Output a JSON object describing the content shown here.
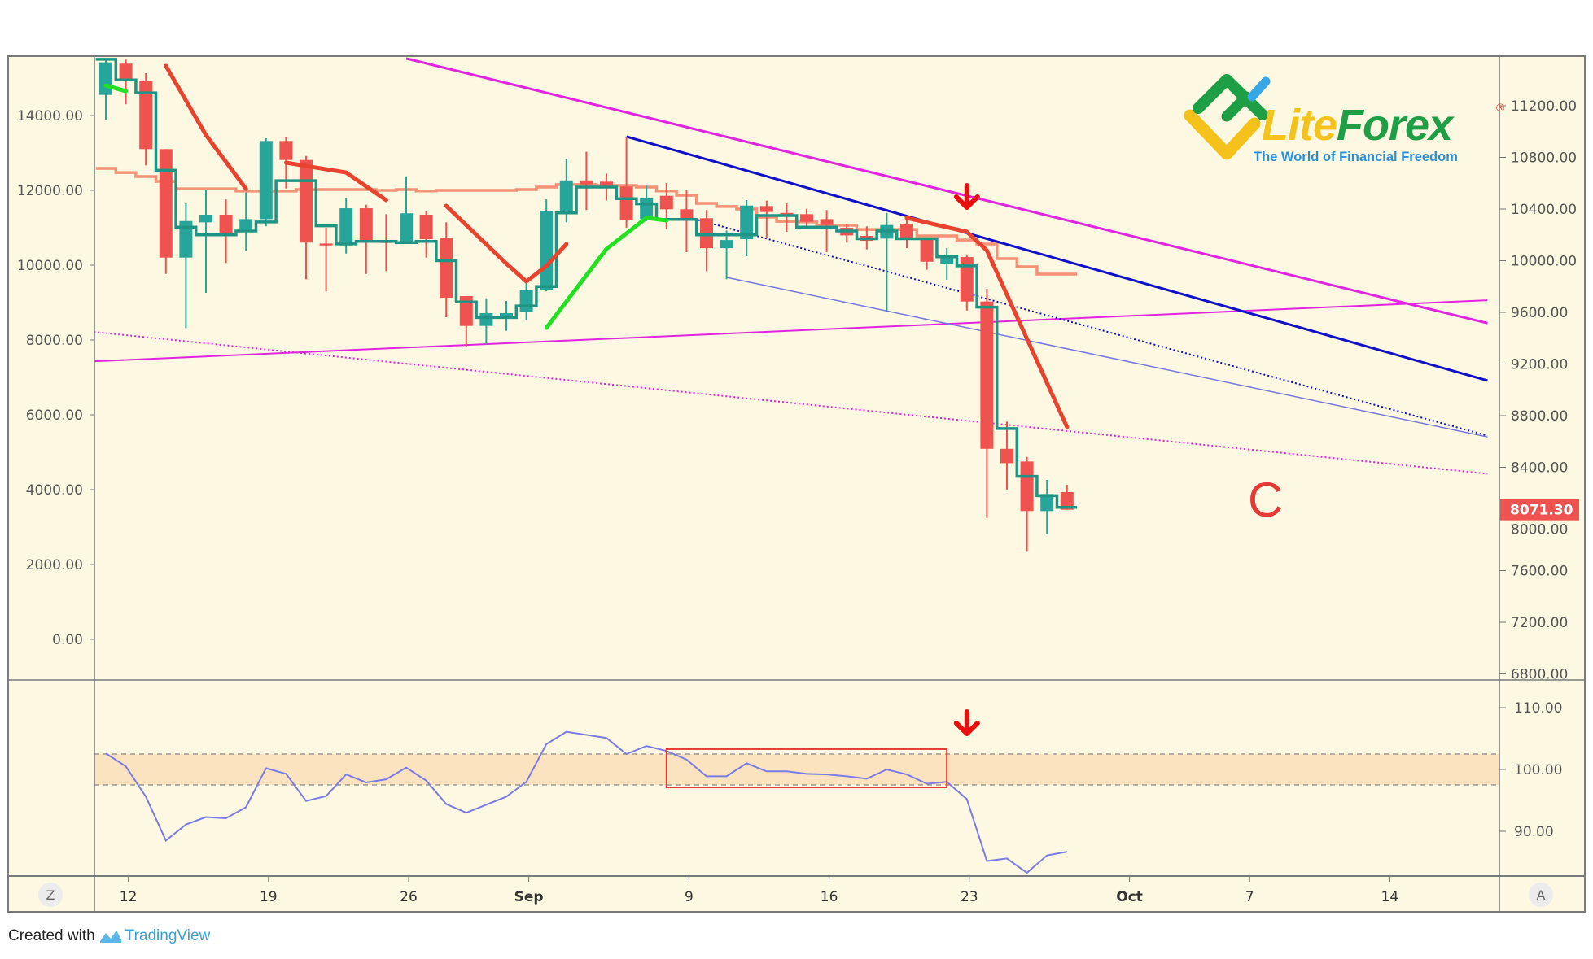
{
  "colors": {
    "background": "#fdf8e1",
    "up": "#26a69a",
    "down": "#ef5350",
    "teal_step": "#1f9484",
    "salmon_step": "#f3866c",
    "magenta": "#e024e0",
    "blue": "#1010c8",
    "purple": "#7777dd",
    "red_curve": "#e8432e",
    "green_curve": "#22e022",
    "indicator_line": "#7b7be6",
    "band_fill": "#fbe3bf",
    "price_badge": "#ef5350"
  },
  "chart_data": {
    "type": "candlestick",
    "candles": [
      {
        "date": "08-11",
        "open": 11284,
        "high": 11567,
        "low": 11091,
        "close": 11536
      },
      {
        "date": "08-12",
        "open": 11526,
        "high": 11557,
        "low": 11211,
        "close": 11389
      },
      {
        "date": "08-13",
        "open": 11389,
        "high": 11452,
        "low": 10738,
        "close": 10864
      },
      {
        "date": "08-14",
        "open": 10864,
        "high": 10864,
        "low": 9898,
        "close": 10024
      },
      {
        "date": "08-15",
        "open": 10024,
        "high": 10444,
        "low": 9478,
        "close": 10307
      },
      {
        "date": "08-16",
        "open": 10297,
        "high": 10549,
        "low": 9751,
        "close": 10356
      },
      {
        "date": "08-17",
        "open": 10356,
        "high": 10475,
        "low": 9982,
        "close": 10213
      },
      {
        "date": "08-18",
        "open": 10230,
        "high": 10528,
        "low": 10077,
        "close": 10322
      },
      {
        "date": "08-19",
        "open": 10322,
        "high": 10948,
        "low": 10266,
        "close": 10927
      },
      {
        "date": "08-20",
        "open": 10927,
        "high": 10959,
        "low": 10559,
        "close": 10780
      },
      {
        "date": "08-21",
        "open": 10780,
        "high": 10811,
        "low": 9856,
        "close": 10140
      },
      {
        "date": "08-22",
        "open": 10133,
        "high": 10255,
        "low": 9762,
        "close": 10118
      },
      {
        "date": "08-23",
        "open": 10118,
        "high": 10486,
        "low": 10055,
        "close": 10406
      },
      {
        "date": "08-24",
        "open": 10406,
        "high": 10433,
        "low": 9898,
        "close": 10154
      },
      {
        "date": "08-25",
        "open": 10150,
        "high": 10360,
        "low": 9919,
        "close": 10140
      },
      {
        "date": "08-26",
        "open": 10140,
        "high": 10654,
        "low": 10129,
        "close": 10367
      },
      {
        "date": "08-27",
        "open": 10356,
        "high": 10381,
        "low": 10024,
        "close": 10167
      },
      {
        "date": "08-28",
        "open": 10178,
        "high": 10297,
        "low": 9562,
        "close": 9713
      },
      {
        "date": "08-29",
        "open": 9726,
        "high": 9726,
        "low": 9331,
        "close": 9495
      },
      {
        "date": "08-30",
        "open": 9495,
        "high": 9709,
        "low": 9352,
        "close": 9594
      },
      {
        "date": "08-31",
        "open": 9552,
        "high": 9688,
        "low": 9457,
        "close": 9594
      },
      {
        "date": "09-01",
        "open": 9600,
        "high": 9835,
        "low": 9541,
        "close": 9772
      },
      {
        "date": "09-02",
        "open": 9776,
        "high": 10475,
        "low": 9762,
        "close": 10387
      },
      {
        "date": "09-03",
        "open": 10387,
        "high": 10790,
        "low": 10297,
        "close": 10622
      },
      {
        "date": "09-04",
        "open": 10622,
        "high": 10843,
        "low": 10392,
        "close": 10591
      },
      {
        "date": "09-05",
        "open": 10612,
        "high": 10675,
        "low": 10465,
        "close": 10581
      },
      {
        "date": "09-06",
        "open": 10574,
        "high": 10959,
        "low": 10255,
        "close": 10314
      },
      {
        "date": "09-07",
        "open": 10322,
        "high": 10581,
        "low": 10307,
        "close": 10482
      },
      {
        "date": "09-08",
        "open": 10503,
        "high": 10602,
        "low": 10244,
        "close": 10398
      },
      {
        "date": "09-09",
        "open": 10398,
        "high": 10549,
        "low": 10066,
        "close": 10314
      },
      {
        "date": "09-10",
        "open": 10329,
        "high": 10392,
        "low": 9919,
        "close": 10097
      },
      {
        "date": "09-11",
        "open": 10097,
        "high": 10234,
        "low": 9856,
        "close": 10160
      },
      {
        "date": "09-12",
        "open": 10167,
        "high": 10469,
        "low": 10035,
        "close": 10427
      },
      {
        "date": "09-13",
        "open": 10423,
        "high": 10465,
        "low": 10171,
        "close": 10377
      },
      {
        "date": "09-14",
        "open": 10370,
        "high": 10444,
        "low": 10224,
        "close": 10350
      },
      {
        "date": "09-15",
        "open": 10360,
        "high": 10402,
        "low": 10255,
        "close": 10301
      },
      {
        "date": "09-16",
        "open": 10322,
        "high": 10392,
        "low": 10066,
        "close": 10276
      },
      {
        "date": "09-17",
        "open": 10255,
        "high": 10287,
        "low": 10140,
        "close": 10196
      },
      {
        "date": "09-18",
        "open": 10192,
        "high": 10266,
        "low": 10087,
        "close": 10154
      },
      {
        "date": "09-19",
        "open": 10171,
        "high": 10370,
        "low": 9604,
        "close": 10276
      },
      {
        "date": "09-20",
        "open": 10287,
        "high": 10318,
        "low": 10097,
        "close": 10171
      },
      {
        "date": "09-21",
        "open": 10167,
        "high": 10181,
        "low": 9930,
        "close": 9992
      },
      {
        "date": "09-22",
        "open": 9978,
        "high": 10097,
        "low": 9852,
        "close": 10020
      },
      {
        "date": "09-23",
        "open": 10028,
        "high": 10049,
        "low": 9614,
        "close": 9684
      },
      {
        "date": "09-24",
        "open": 9684,
        "high": 9782,
        "low": 8008,
        "close": 8543
      },
      {
        "date": "09-25",
        "open": 8543,
        "high": 8754,
        "low": 8228,
        "close": 8432
      },
      {
        "date": "09-26",
        "open": 8445,
        "high": 8480,
        "low": 7746,
        "close": 8061
      },
      {
        "date": "09-27",
        "open": 8061,
        "high": 8302,
        "low": 7882,
        "close": 8193
      },
      {
        "date": "09-28",
        "open": 8208,
        "high": 8264,
        "low": 8071,
        "close": 8071.3
      }
    ],
    "teal_step": [
      11560,
      11400,
      11300,
      10700,
      10260,
      10200,
      10200,
      10230,
      10300,
      10620,
      10620,
      10270,
      10130,
      10150,
      10150,
      10140,
      10150,
      10000,
      9680,
      9560,
      9560,
      9650,
      9800,
      10370,
      10570,
      10570,
      10480,
      10440,
      10320,
      10320,
      10200,
      10200,
      10200,
      10350,
      10350,
      10260,
      10260,
      10230,
      10170,
      10230,
      10170,
      10170,
      10030,
      9960,
      9640,
      8700,
      8330,
      8180,
      8090
    ],
    "salmon_step": [
      10715,
      10683,
      10652,
      10614,
      10557,
      10557,
      10557,
      10539,
      10539,
      10539,
      10551,
      10551,
      10551,
      10551,
      10545,
      10551,
      10540,
      10545,
      10545,
      10545,
      10545,
      10551,
      10570,
      10590,
      10590,
      10583,
      10583,
      10570,
      10540,
      10507,
      10444,
      10420,
      10400,
      10337,
      10305,
      10300,
      10274,
      10274,
      10242,
      10242,
      10242,
      10192,
      10192,
      10160,
      10129,
      10016,
      9953,
      9896,
      9896
    ],
    "trendlines": [
      {
        "color": "magenta",
        "style": "solid",
        "width": 3,
        "points": [
          {
            "date": "08-26",
            "price": 11566
          },
          {
            "date": "10-19",
            "price": 9516
          }
        ]
      },
      {
        "color": "magenta",
        "style": "solid",
        "width": 2,
        "points": [
          {
            "date": "08-10",
            "price": 9218
          },
          {
            "date": "10-19",
            "price": 9694
          }
        ]
      },
      {
        "color": "magenta",
        "style": "dotted",
        "width": 2,
        "points": [
          {
            "date": "08-10",
            "price": 9455
          },
          {
            "date": "10-19",
            "price": 8350
          }
        ]
      },
      {
        "color": "blue",
        "style": "solid",
        "width": 3,
        "points": [
          {
            "date": "09-06",
            "price": 10961
          },
          {
            "date": "10-19",
            "price": 9071
          }
        ]
      },
      {
        "color": "blue",
        "style": "dotted",
        "width": 2,
        "points": [
          {
            "date": "09-09",
            "price": 10340
          },
          {
            "date": "10-19",
            "price": 8645
          }
        ]
      },
      {
        "color": "purple",
        "style": "solid",
        "width": 1.5,
        "points": [
          {
            "date": "09-11",
            "price": 9871
          },
          {
            "date": "10-19",
            "price": 8635
          }
        ]
      }
    ],
    "curves": [
      {
        "color": "red_curve",
        "points": [
          {
            "date": "08-14",
            "price": 11509
          },
          {
            "date": "08-16",
            "price": 10973
          },
          {
            "date": "08-18",
            "price": 10557
          }
        ]
      },
      {
        "color": "red_curve",
        "points": [
          {
            "date": "08-20",
            "price": 10759
          },
          {
            "date": "08-23",
            "price": 10683
          },
          {
            "date": "08-25",
            "price": 10469
          }
        ]
      },
      {
        "color": "red_curve",
        "points": [
          {
            "date": "08-28",
            "price": 10425
          },
          {
            "date": "08-31",
            "price": 9978
          },
          {
            "date": "09-01",
            "price": 9839
          },
          {
            "date": "09-02",
            "price": 9959
          },
          {
            "date": "09-03",
            "price": 10129
          }
        ]
      },
      {
        "color": "red_curve",
        "points": [
          {
            "date": "09-20",
            "price": 10331
          },
          {
            "date": "09-23",
            "price": 10224
          },
          {
            "date": "09-24",
            "price": 10079
          },
          {
            "date": "09-28",
            "price": 8712
          }
        ]
      },
      {
        "color": "green_curve",
        "points": [
          {
            "date": "08-11",
            "price": 11357
          },
          {
            "date": "08-12",
            "price": 11313
          }
        ]
      },
      {
        "color": "green_curve",
        "points": [
          {
            "date": "09-02",
            "price": 9480
          },
          {
            "date": "09-05",
            "price": 10091
          },
          {
            "date": "09-07",
            "price": 10331
          },
          {
            "date": "09-08",
            "price": 10312
          }
        ]
      }
    ],
    "arrow_main": {
      "date": "09-23",
      "price": 10394
    },
    "left_axis_ticks": [
      "14000.00",
      "12000.00",
      "10000.00",
      "8000.00",
      "6000.00",
      "4000.00",
      "2000.00",
      "0.00"
    ],
    "right_axis_ticks": [
      "11200.00",
      "10800.00",
      "10400.00",
      "10000.00",
      "9600.00",
      "9200.00",
      "8800.00",
      "8400.00",
      "8000.00",
      "7600.00",
      "7200.00",
      "6800.00"
    ],
    "right_axis_range": [
      6800,
      11200
    ],
    "last_price": "8071.30",
    "x_ticks": [
      {
        "label": "12",
        "date": "08-12",
        "bold": false
      },
      {
        "label": "19",
        "date": "08-19",
        "bold": false
      },
      {
        "label": "26",
        "date": "08-26",
        "bold": false
      },
      {
        "label": "Sep",
        "date": "09-01",
        "bold": true
      },
      {
        "label": "9",
        "date": "09-09",
        "bold": false
      },
      {
        "label": "16",
        "date": "09-16",
        "bold": false
      },
      {
        "label": "23",
        "date": "09-23",
        "bold": false
      },
      {
        "label": "Oct",
        "date": "10-01",
        "bold": true
      },
      {
        "label": "7",
        "date": "10-07",
        "bold": false
      },
      {
        "label": "14",
        "date": "10-14",
        "bold": false
      }
    ],
    "indicator": {
      "values": [
        102.6,
        100.5,
        95.6,
        88.5,
        91.1,
        92.3,
        92.1,
        93.9,
        100.2,
        99.3,
        94.9,
        95.7,
        99.2,
        97.9,
        98.4,
        100.3,
        98.2,
        94.4,
        93.0,
        94.3,
        95.6,
        98.0,
        104.1,
        106.1,
        105.6,
        105.1,
        102.5,
        103.8,
        103.0,
        101.6,
        98.9,
        98.9,
        101.0,
        99.7,
        99.7,
        99.3,
        99.2,
        98.9,
        98.5,
        100.0,
        99.2,
        97.7,
        98.0,
        95.2,
        85.2,
        85.6,
        83.3,
        86.1,
        86.7
      ],
      "band": [
        97.5,
        102.5
      ],
      "ticks": [
        "110.00",
        "100.00",
        "90.00"
      ],
      "tick_values": [
        110,
        100,
        90
      ],
      "box": {
        "from": "09-08",
        "to": "09-22",
        "low": 97.1,
        "high": 103.3
      },
      "arrow": {
        "date": "09-23",
        "value": 105.4
      }
    }
  },
  "annotation_label": "C",
  "logo": {
    "lite": "Lite",
    "forex": "Forex",
    "registered": "®",
    "tagline": "The World of Financial Freedom"
  },
  "axis_buttons": {
    "left": "Z",
    "right": "A"
  },
  "footer": {
    "created_with": "Created with",
    "brand": "TradingView"
  }
}
